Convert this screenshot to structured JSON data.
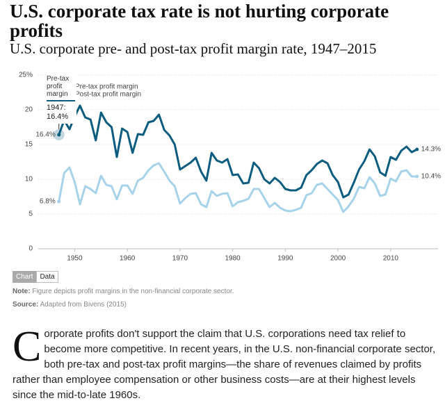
{
  "chart_data": {
    "type": "line",
    "title": "U.S. corporate tax rate is not hurting corporate profits",
    "subtitle": "U.S. corporate pre- and post-tax profit margin rate, 1947–2015",
    "x": [
      1947,
      1948,
      1949,
      1950,
      1951,
      1952,
      1953,
      1954,
      1955,
      1956,
      1957,
      1958,
      1959,
      1960,
      1961,
      1962,
      1963,
      1964,
      1965,
      1966,
      1967,
      1968,
      1969,
      1970,
      1971,
      1972,
      1973,
      1974,
      1975,
      1976,
      1977,
      1978,
      1979,
      1980,
      1981,
      1982,
      1983,
      1984,
      1985,
      1986,
      1987,
      1988,
      1989,
      1990,
      1991,
      1992,
      1993,
      1994,
      1995,
      1996,
      1997,
      1998,
      1999,
      2000,
      2001,
      2002,
      2003,
      2004,
      2005,
      2006,
      2007,
      2008,
      2009,
      2010,
      2011,
      2012,
      2013,
      2014,
      2015
    ],
    "series": [
      {
        "name": "Pre-tax profit margin",
        "color": "#0b5c7e",
        "values": [
          16.4,
          18.5,
          17.2,
          19.0,
          20.6,
          18.9,
          18.6,
          15.6,
          19.6,
          18.2,
          17.5,
          13.2,
          17.3,
          16.8,
          13.8,
          16.5,
          16.4,
          18.2,
          18.4,
          19.3,
          17.1,
          16.3,
          15.0,
          11.4,
          11.9,
          12.4,
          13.1,
          11.1,
          9.8,
          13.8,
          12.7,
          12.4,
          12.9,
          10.6,
          10.7,
          9.4,
          9.5,
          12.4,
          11.6,
          10.0,
          9.4,
          10.2,
          9.6,
          8.6,
          8.4,
          8.4,
          8.8,
          10.6,
          11.3,
          12.2,
          12.7,
          12.3,
          10.6,
          9.6,
          7.4,
          7.8,
          9.5,
          11.4,
          12.6,
          14.3,
          13.3,
          11.0,
          10.5,
          13.2,
          12.8,
          14.1,
          14.7,
          13.9,
          14.3
        ],
        "value_labels": [
          "16.4%",
          null,
          null,
          null,
          null,
          null,
          null,
          null,
          null,
          null,
          null,
          null,
          null,
          null,
          null,
          null,
          null,
          null,
          null,
          null,
          null,
          null,
          null,
          null,
          null,
          null,
          null,
          null,
          null,
          null,
          null,
          null,
          null,
          null,
          null,
          null,
          null,
          null,
          null,
          null,
          null,
          null,
          null,
          null,
          null,
          null,
          null,
          null,
          null,
          null,
          null,
          null,
          null,
          null,
          null,
          null,
          null,
          null,
          null,
          null,
          null,
          null,
          null,
          null,
          null,
          null,
          null,
          null,
          "14.3%"
        ]
      },
      {
        "name": "Post-tax profit margin",
        "color": "#a6d2ea",
        "values": [
          6.8,
          10.9,
          11.7,
          9.6,
          6.4,
          9.0,
          8.6,
          8.0,
          10.5,
          9.2,
          9.0,
          7.1,
          9.1,
          9.1,
          7.9,
          9.8,
          10.2,
          11.3,
          12.0,
          12.3,
          11.1,
          9.8,
          9.0,
          6.5,
          7.3,
          7.9,
          8.0,
          6.4,
          6.0,
          8.3,
          7.6,
          7.9,
          8.0,
          6.1,
          6.7,
          6.9,
          7.2,
          8.6,
          8.6,
          7.3,
          6.0,
          6.6,
          5.9,
          5.5,
          5.4,
          5.6,
          5.9,
          7.7,
          8.0,
          9.2,
          9.4,
          8.6,
          7.8,
          7.0,
          5.3,
          6.1,
          7.2,
          8.9,
          8.7,
          10.3,
          9.4,
          7.6,
          7.8,
          10.1,
          9.7,
          11.1,
          11.3,
          10.4,
          10.4
        ],
        "value_labels": [
          "6.8%",
          null,
          null,
          null,
          null,
          null,
          null,
          null,
          null,
          null,
          null,
          null,
          null,
          null,
          null,
          null,
          null,
          null,
          null,
          null,
          null,
          null,
          null,
          null,
          null,
          null,
          null,
          null,
          null,
          null,
          null,
          null,
          null,
          null,
          null,
          null,
          null,
          null,
          null,
          null,
          null,
          null,
          null,
          null,
          null,
          null,
          null,
          null,
          null,
          null,
          null,
          null,
          null,
          null,
          null,
          null,
          null,
          null,
          null,
          null,
          null,
          null,
          null,
          null,
          null,
          null,
          null,
          null,
          "10.4%"
        ]
      }
    ],
    "xlim": [
      1944,
      2019
    ],
    "xticks": [
      1950,
      1960,
      1970,
      1980,
      1990,
      2000,
      2010
    ],
    "ylim": [
      0,
      25
    ],
    "yticks": [
      0,
      5,
      10,
      15,
      20,
      {
        "value": 25,
        "label": "25%"
      }
    ],
    "grid": true,
    "legend": "top-left",
    "tooltip": {
      "label": "1947:",
      "value_label": "16.4%"
    },
    "buttons": [
      "Chart",
      "Data"
    ],
    "note": {
      "label": "Note:",
      "text": "Figure depicts profit margins in the non-financial corporate sector."
    },
    "source": {
      "label": "Source:",
      "text": "Adapted from Bivens (2015)"
    }
  },
  "paragraph": {
    "drop_cap": "C",
    "text": "orporate profits don't support the claim that U.S. corporations need tax relief to become more competitive. In recent years, in the U.S. non-financial corporate sector, both pre-tax and post-tax profit margins—the share of revenues claimed by profits rather than employee compensation or other business costs—are at their highest levels since the mid-to-late 1960s."
  }
}
